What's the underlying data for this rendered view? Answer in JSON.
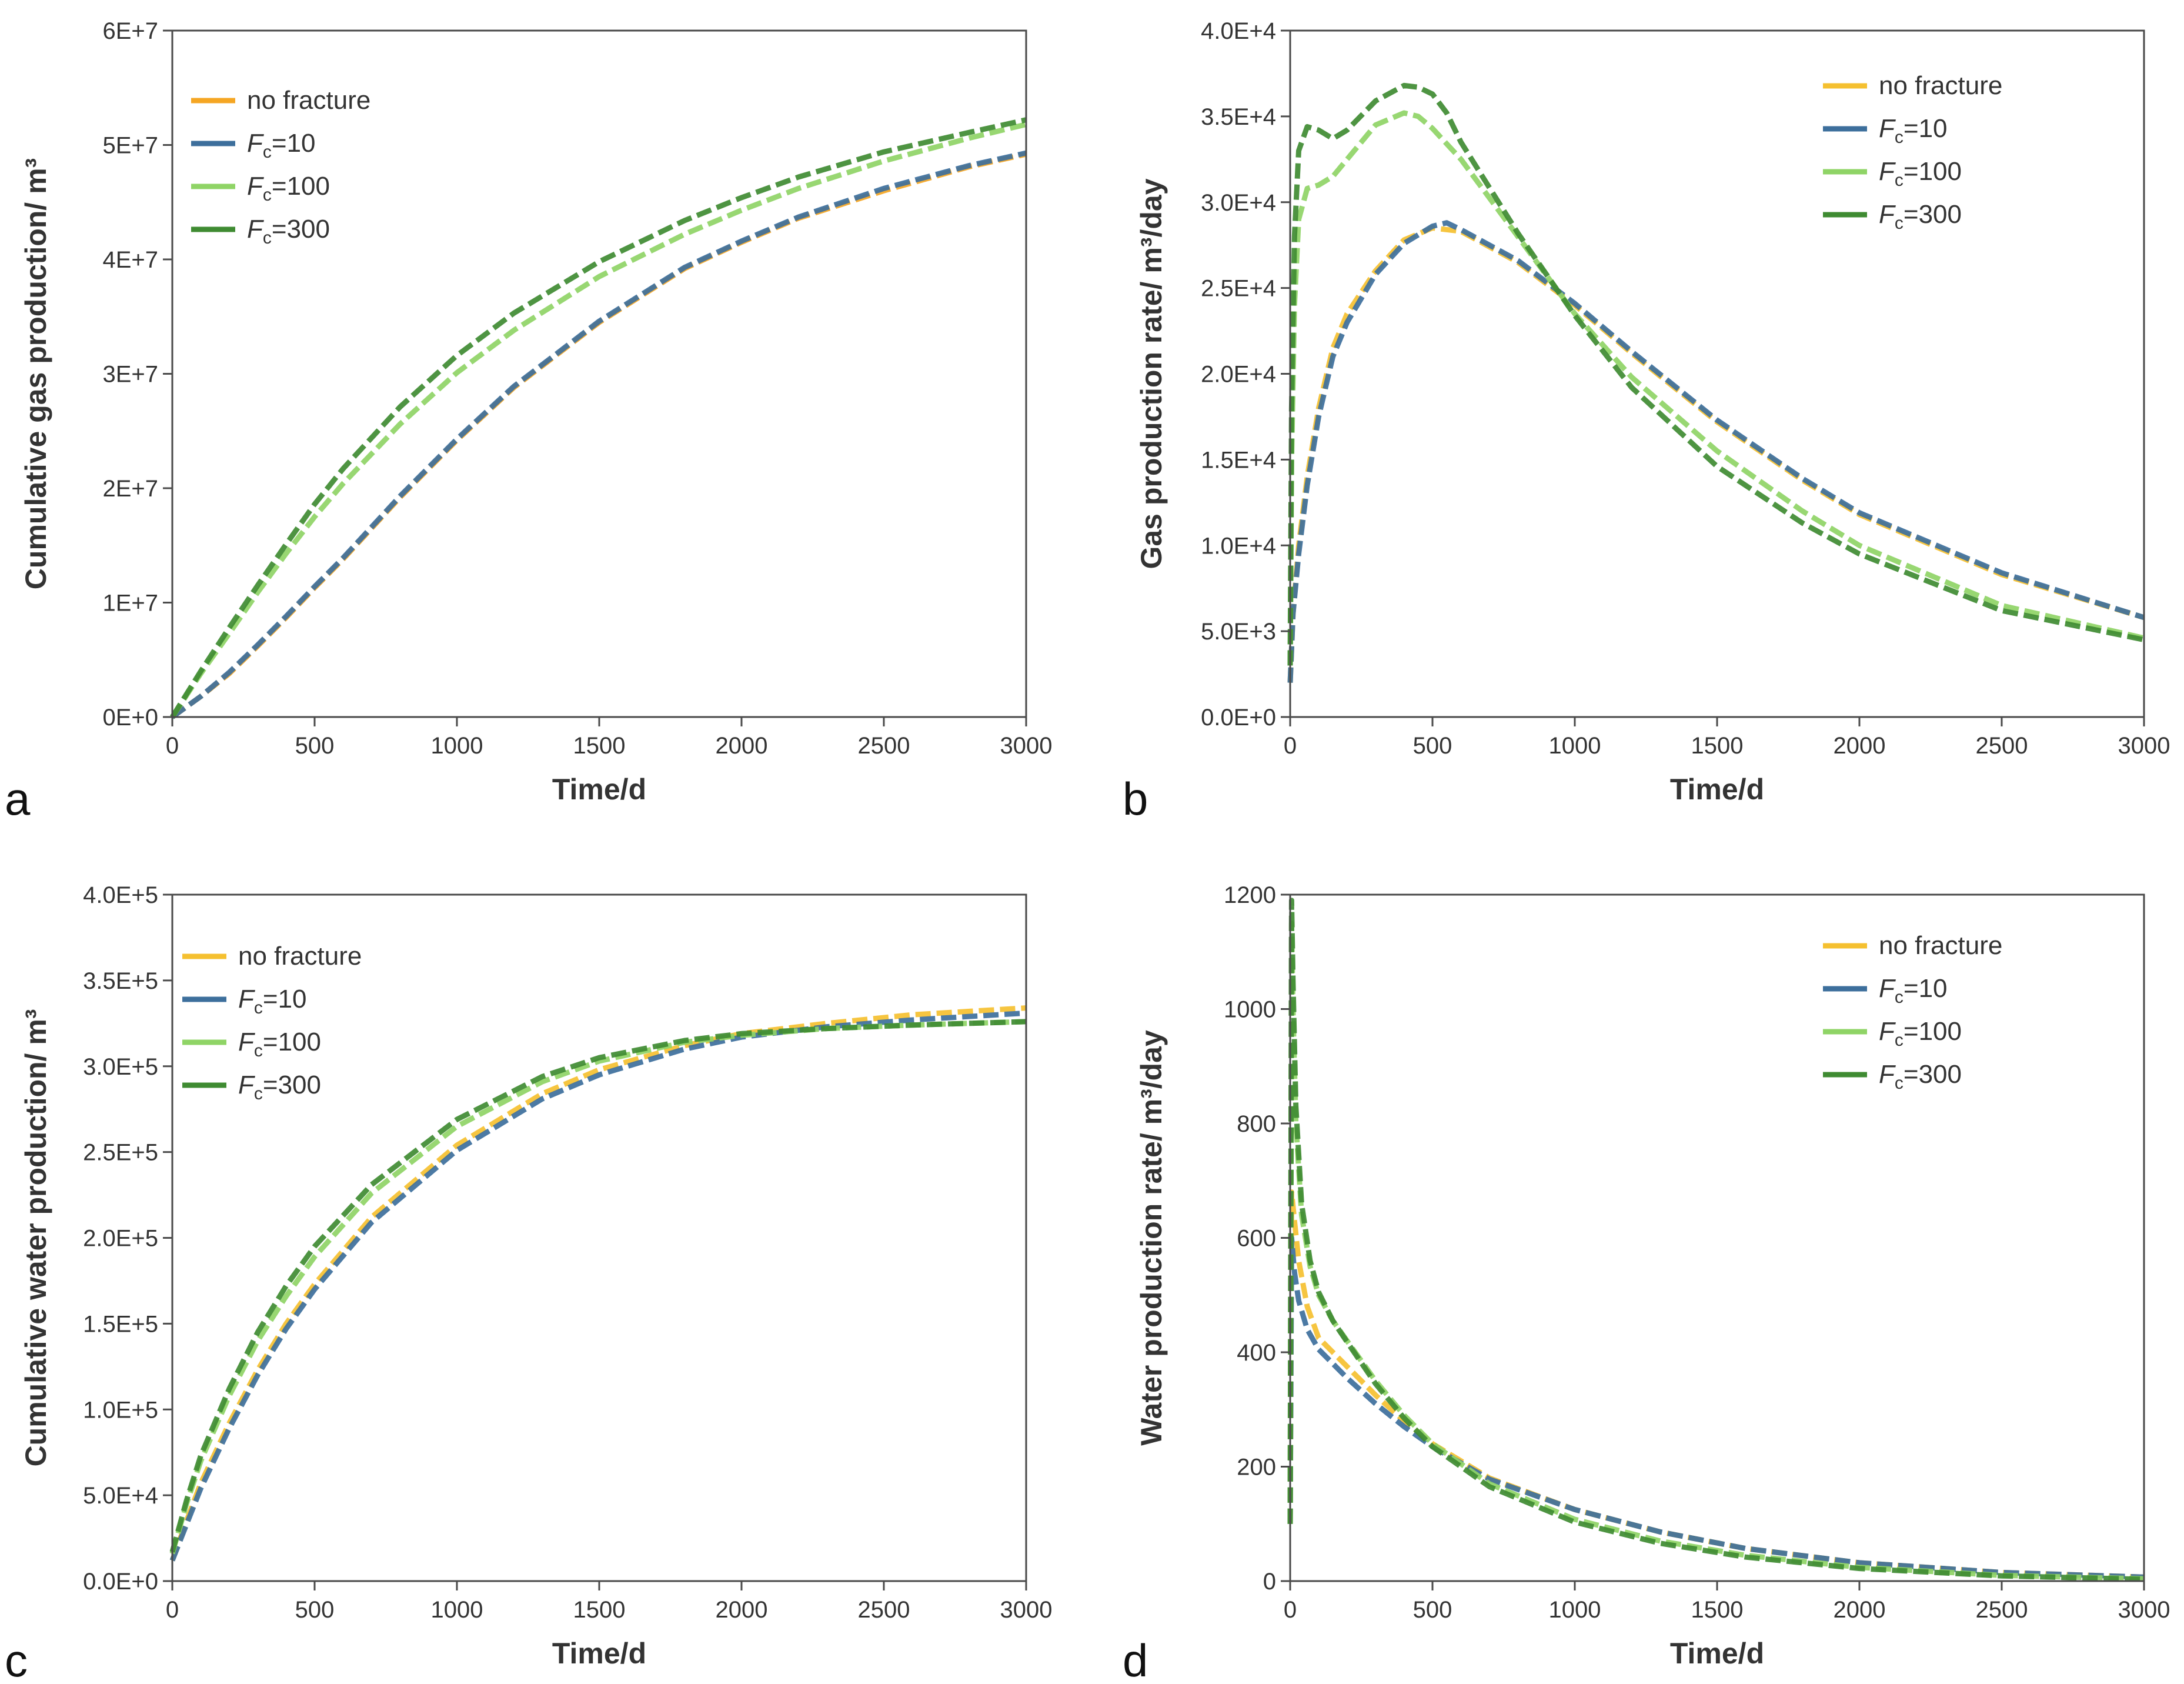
{
  "figure": {
    "colors": {
      "no_fracture": "#f5a623",
      "fc10": "#3d6f9c",
      "fc100": "#8fd466",
      "fc300": "#3f8b32"
    }
  },
  "chart_data": [
    {
      "id": "a",
      "type": "line",
      "panel_label": "a",
      "xlabel": "Time/d",
      "ylabel": "Cumulative gas production/ m³",
      "xlim": [
        0,
        3000
      ],
      "ylim": [
        0,
        60000000
      ],
      "x_ticks": [
        0,
        500,
        1000,
        1500,
        2000,
        2500,
        3000
      ],
      "x_tick_labels": [
        "0",
        "500",
        "1000",
        "1500",
        "2000",
        "2500",
        "3000"
      ],
      "y_ticks": [
        0,
        10000000,
        20000000,
        30000000,
        40000000,
        50000000,
        60000000
      ],
      "y_tick_labels": [
        "0E+0",
        "1E+7",
        "2E+7",
        "3E+7",
        "4E+7",
        "5E+7",
        "6E+7"
      ],
      "legend_position": "top-left",
      "legend": [
        {
          "key": "no_fracture",
          "main": "no fracture",
          "sub": ""
        },
        {
          "key": "fc10",
          "main": "F",
          "sub": "c",
          "rest": "=10"
        },
        {
          "key": "fc100",
          "main": "F",
          "sub": "c",
          "rest": "=100"
        },
        {
          "key": "fc300",
          "main": "F",
          "sub": "c",
          "rest": "=300"
        }
      ],
      "series": [
        {
          "key": "no_fracture",
          "name": "no fracture",
          "color": "#f5a623",
          "x": [
            0,
            100,
            200,
            300,
            400,
            500,
            600,
            800,
            1000,
            1200,
            1500,
            1800,
            2000,
            2200,
            2500,
            2800,
            3000
          ],
          "y": [
            0,
            1800000,
            3800000,
            6200000,
            8700000,
            11300000,
            13800000,
            19200000,
            24200000,
            28800000,
            34500000,
            39200000,
            41500000,
            43600000,
            46000000,
            48100000,
            49200000
          ]
        },
        {
          "key": "fc10",
          "name": "Fc=10",
          "color": "#3d6f9c",
          "x": [
            0,
            100,
            200,
            300,
            400,
            500,
            600,
            800,
            1000,
            1200,
            1500,
            1800,
            2000,
            2200,
            2500,
            2800,
            3000
          ],
          "y": [
            0,
            1800000,
            3900000,
            6300000,
            8800000,
            11400000,
            13900000,
            19300000,
            24300000,
            28900000,
            34600000,
            39300000,
            41600000,
            43700000,
            46200000,
            48200000,
            49300000
          ]
        },
        {
          "key": "fc100",
          "name": "Fc=100",
          "color": "#8fd466",
          "x": [
            0,
            100,
            200,
            300,
            400,
            500,
            600,
            800,
            1000,
            1200,
            1500,
            1800,
            2000,
            2200,
            2500,
            2800,
            3000
          ],
          "y": [
            0,
            3800000,
            7300000,
            10900000,
            14300000,
            17500000,
            20400000,
            25600000,
            30100000,
            33800000,
            38500000,
            42200000,
            44300000,
            46200000,
            48600000,
            50600000,
            51800000
          ]
        },
        {
          "key": "fc300",
          "name": "Fc=300",
          "color": "#3f8b32",
          "x": [
            0,
            100,
            200,
            300,
            400,
            500,
            600,
            800,
            1000,
            1200,
            1500,
            1800,
            2000,
            2200,
            2500,
            2800,
            3000
          ],
          "y": [
            0,
            4000000,
            7800000,
            11500000,
            15100000,
            18600000,
            21700000,
            27100000,
            31600000,
            35300000,
            39800000,
            43400000,
            45400000,
            47200000,
            49400000,
            51100000,
            52200000
          ]
        }
      ]
    },
    {
      "id": "b",
      "type": "line",
      "panel_label": "b",
      "xlabel": "Time/d",
      "ylabel": "Gas production rate/ m³/day",
      "xlim": [
        0,
        3000
      ],
      "ylim": [
        0,
        40000
      ],
      "x_ticks": [
        0,
        500,
        1000,
        1500,
        2000,
        2500,
        3000
      ],
      "x_tick_labels": [
        "0",
        "500",
        "1000",
        "1500",
        "2000",
        "2500",
        "3000"
      ],
      "y_ticks": [
        0,
        5000,
        10000,
        15000,
        20000,
        25000,
        30000,
        35000,
        40000
      ],
      "y_tick_labels": [
        "0.0E+0",
        "5.0E+3",
        "1.0E+4",
        "1.5E+4",
        "2.0E+4",
        "2.5E+4",
        "3.0E+4",
        "3.5E+4",
        "4.0E+4"
      ],
      "legend_position": "top-right",
      "legend": [
        {
          "key": "no_fracture",
          "main": "no fracture",
          "sub": ""
        },
        {
          "key": "fc10",
          "main": "F",
          "sub": "c",
          "rest": "=10"
        },
        {
          "key": "fc100",
          "main": "F",
          "sub": "c",
          "rest": "=100"
        },
        {
          "key": "fc300",
          "main": "F",
          "sub": "c",
          "rest": "=300"
        }
      ],
      "series": [
        {
          "key": "no_fracture",
          "name": "no fracture",
          "color": "#f5c030",
          "x": [
            0,
            10,
            30,
            60,
            100,
            150,
            200,
            300,
            400,
            500,
            600,
            800,
            1000,
            1200,
            1500,
            1800,
            2000,
            2500,
            3000
          ],
          "y": [
            2000,
            6000,
            10000,
            14000,
            18000,
            21500,
            23500,
            26000,
            27800,
            28500,
            28300,
            26500,
            24000,
            21200,
            17200,
            13800,
            11800,
            8300,
            5800
          ]
        },
        {
          "key": "fc10",
          "name": "Fc=10",
          "color": "#3d6f9c",
          "x": [
            0,
            10,
            30,
            60,
            100,
            150,
            200,
            300,
            400,
            500,
            550,
            600,
            800,
            1000,
            1200,
            1500,
            1800,
            2000,
            2500,
            3000
          ],
          "y": [
            2000,
            6000,
            9500,
            13500,
            17500,
            21000,
            23000,
            25800,
            27600,
            28600,
            28800,
            28400,
            26600,
            24100,
            21300,
            17300,
            13900,
            11900,
            8400,
            5800
          ]
        },
        {
          "key": "fc100",
          "name": "Fc=100",
          "color": "#8fd466",
          "x": [
            0,
            5,
            15,
            30,
            60,
            100,
            150,
            200,
            300,
            400,
            450,
            500,
            600,
            800,
            1000,
            1200,
            1500,
            1800,
            2000,
            2500,
            3000
          ],
          "y": [
            3000,
            15000,
            24000,
            29000,
            30800,
            31000,
            31500,
            32500,
            34500,
            35200,
            35000,
            34300,
            32500,
            28000,
            23500,
            19800,
            15500,
            12000,
            10000,
            6500,
            4600
          ]
        },
        {
          "key": "fc300",
          "name": "Fc=300",
          "color": "#3f8b32",
          "x": [
            0,
            5,
            15,
            30,
            60,
            100,
            150,
            200,
            300,
            400,
            450,
            500,
            550,
            600,
            800,
            1000,
            1200,
            1500,
            1800,
            2000,
            2500,
            3000
          ],
          "y": [
            3000,
            18000,
            28000,
            33000,
            34400,
            34200,
            33700,
            34200,
            35900,
            36800,
            36700,
            36300,
            35200,
            33500,
            28200,
            23400,
            19200,
            14600,
            11300,
            9500,
            6200,
            4500
          ]
        }
      ]
    },
    {
      "id": "c",
      "type": "line",
      "panel_label": "c",
      "xlabel": "Time/d",
      "ylabel": "Cumulative water production/ m³",
      "xlim": [
        0,
        3000
      ],
      "ylim": [
        0,
        400000
      ],
      "x_ticks": [
        0,
        500,
        1000,
        1500,
        2000,
        2500,
        3000
      ],
      "x_tick_labels": [
        "0",
        "500",
        "1000",
        "1500",
        "2000",
        "2500",
        "3000"
      ],
      "y_ticks": [
        0,
        50000,
        100000,
        150000,
        200000,
        250000,
        300000,
        350000,
        400000
      ],
      "y_tick_labels": [
        "0.0E+0",
        "5.0E+4",
        "1.0E+5",
        "1.5E+5",
        "2.0E+5",
        "2.5E+5",
        "3.0E+5",
        "3.5E+5",
        "4.0E+5"
      ],
      "legend_position": "top-left",
      "legend": [
        {
          "key": "no_fracture",
          "main": "no fracture",
          "sub": ""
        },
        {
          "key": "fc10",
          "main": "F",
          "sub": "c",
          "rest": "=10"
        },
        {
          "key": "fc100",
          "main": "F",
          "sub": "c",
          "rest": "=100"
        },
        {
          "key": "fc300",
          "main": "F",
          "sub": "c",
          "rest": "=300"
        }
      ],
      "series": [
        {
          "key": "no_fracture",
          "name": "no fracture",
          "color": "#f5c030",
          "x": [
            0,
            50,
            100,
            200,
            300,
            400,
            500,
            700,
            1000,
            1300,
            1500,
            1800,
            2000,
            2300,
            2600,
            3000
          ],
          "y": [
            12000,
            35000,
            57000,
            92000,
            123000,
            150000,
            173000,
            212000,
            254000,
            284000,
            298000,
            312000,
            319000,
            325000,
            330000,
            334000
          ]
        },
        {
          "key": "fc10",
          "name": "Fc=10",
          "color": "#3d6f9c",
          "x": [
            0,
            50,
            100,
            200,
            300,
            400,
            500,
            700,
            1000,
            1300,
            1500,
            1800,
            2000,
            2300,
            2600,
            3000
          ],
          "y": [
            12000,
            33000,
            54000,
            89000,
            120000,
            147000,
            170000,
            209000,
            251000,
            281000,
            295000,
            310000,
            317000,
            323000,
            327000,
            331000
          ]
        },
        {
          "key": "fc100",
          "name": "Fc=100",
          "color": "#8fd466",
          "x": [
            0,
            50,
            100,
            200,
            300,
            400,
            500,
            700,
            1000,
            1300,
            1500,
            1800,
            2000,
            2300,
            2600,
            3000
          ],
          "y": [
            16000,
            45000,
            70000,
            108000,
            140000,
            166000,
            189000,
            226000,
            265000,
            291000,
            303000,
            314000,
            318000,
            322000,
            324000,
            326000
          ]
        },
        {
          "key": "fc300",
          "name": "Fc=300",
          "color": "#3f8b32",
          "x": [
            0,
            50,
            100,
            200,
            300,
            400,
            500,
            700,
            1000,
            1300,
            1500,
            1800,
            2000,
            2300,
            2600,
            3000
          ],
          "y": [
            17000,
            47000,
            73000,
            112000,
            145000,
            172000,
            195000,
            231000,
            269000,
            294000,
            305000,
            315000,
            319000,
            322000,
            324000,
            326000
          ]
        }
      ]
    },
    {
      "id": "d",
      "type": "line",
      "panel_label": "d",
      "xlabel": "Time/d",
      "ylabel": "Water production rate/ m³/day",
      "xlim": [
        0,
        3000
      ],
      "ylim": [
        0,
        1200
      ],
      "x_ticks": [
        0,
        500,
        1000,
        1500,
        2000,
        2500,
        3000
      ],
      "x_tick_labels": [
        "0",
        "500",
        "1000",
        "1500",
        "2000",
        "2500",
        "3000"
      ],
      "y_ticks": [
        0,
        200,
        400,
        600,
        800,
        1000,
        1200
      ],
      "y_tick_labels": [
        "0",
        "200",
        "400",
        "600",
        "800",
        "1000",
        "1200"
      ],
      "legend_position": "top-right",
      "legend": [
        {
          "key": "no_fracture",
          "main": "no fracture",
          "sub": ""
        },
        {
          "key": "fc10",
          "main": "F",
          "sub": "c",
          "rest": "=10"
        },
        {
          "key": "fc100",
          "main": "F",
          "sub": "c",
          "rest": "=100"
        },
        {
          "key": "fc300",
          "main": "F",
          "sub": "c",
          "rest": "=300"
        }
      ],
      "series": [
        {
          "key": "no_fracture",
          "name": "no fracture",
          "color": "#f5c030",
          "x": [
            0,
            5,
            15,
            30,
            60,
            100,
            150,
            200,
            300,
            400,
            500,
            700,
            1000,
            1300,
            1600,
            2000,
            2500,
            3000
          ],
          "y": [
            100,
            680,
            630,
            560,
            480,
            425,
            400,
            375,
            325,
            280,
            240,
            180,
            125,
            86,
            57,
            32,
            15,
            7
          ]
        },
        {
          "key": "fc10",
          "name": "Fc=10",
          "color": "#3d6f9c",
          "x": [
            0,
            5,
            15,
            30,
            60,
            100,
            150,
            200,
            300,
            400,
            500,
            700,
            1000,
            1300,
            1600,
            2000,
            2500,
            3000
          ],
          "y": [
            100,
            600,
            540,
            490,
            440,
            405,
            380,
            355,
            310,
            270,
            235,
            178,
            125,
            86,
            57,
            32,
            15,
            7
          ]
        },
        {
          "key": "fc100",
          "name": "Fc=100",
          "color": "#8fd466",
          "x": [
            0,
            5,
            10,
            20,
            40,
            70,
            100,
            150,
            200,
            300,
            400,
            500,
            700,
            1000,
            1300,
            1600,
            2000,
            2500,
            3000
          ],
          "y": [
            100,
            1150,
            1000,
            800,
            640,
            550,
            500,
            455,
            420,
            350,
            290,
            240,
            170,
            108,
            70,
            45,
            24,
            10,
            4
          ]
        },
        {
          "key": "fc300",
          "name": "Fc=300",
          "color": "#3f8b32",
          "x": [
            0,
            5,
            10,
            20,
            40,
            70,
            100,
            150,
            200,
            300,
            400,
            500,
            700,
            1000,
            1300,
            1600,
            2000,
            2500,
            3000
          ],
          "y": [
            100,
            1190,
            1050,
            830,
            660,
            560,
            505,
            455,
            418,
            345,
            285,
            235,
            165,
            103,
            66,
            42,
            22,
            9,
            3
          ]
        }
      ]
    }
  ]
}
